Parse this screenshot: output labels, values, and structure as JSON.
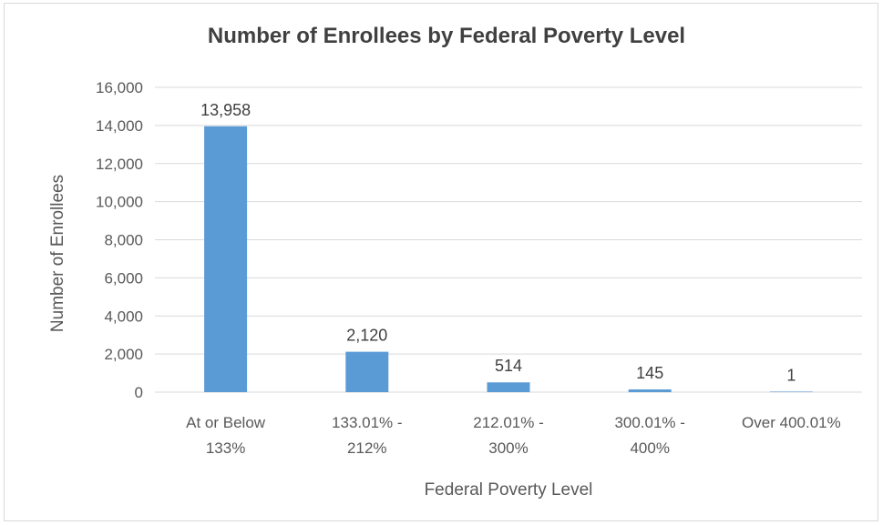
{
  "chart_data": {
    "type": "bar",
    "title": "Number of Enrollees by Federal Poverty Level",
    "xlabel": "Federal Poverty Level",
    "ylabel": "Number of Enrollees",
    "categories": [
      [
        "At or Below",
        "133%"
      ],
      [
        "133.01% -",
        "212%"
      ],
      [
        "212.01% -",
        "300%"
      ],
      [
        "300.01% -",
        "400%"
      ],
      [
        "Over 400.01%"
      ]
    ],
    "values": [
      13958,
      2120,
      514,
      145,
      1
    ],
    "data_labels": [
      "13,958",
      "2,120",
      "514",
      "145",
      "1"
    ],
    "yticks": [
      0,
      2000,
      4000,
      6000,
      8000,
      10000,
      12000,
      14000,
      16000
    ],
    "ytick_labels": [
      "0",
      "2,000",
      "4,000",
      "6,000",
      "8,000",
      "10,000",
      "12,000",
      "14,000",
      "16,000"
    ],
    "ylim": [
      0,
      16000
    ],
    "grid": true,
    "legend": "none",
    "colors": {
      "bar": "#5b9bd5",
      "grid": "#d9d9d9",
      "text": "#595959"
    }
  }
}
